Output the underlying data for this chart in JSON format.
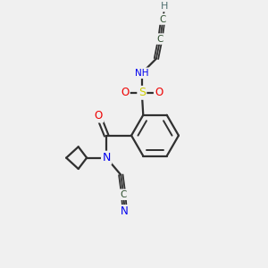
{
  "bg_color": "#f0f0f0",
  "atom_colors": {
    "C": "#2f4f2f",
    "N": "#0000ee",
    "O": "#ee0000",
    "S": "#cccc00",
    "H": "#507070"
  },
  "bond_color": "#303030",
  "bond_width": 1.6
}
